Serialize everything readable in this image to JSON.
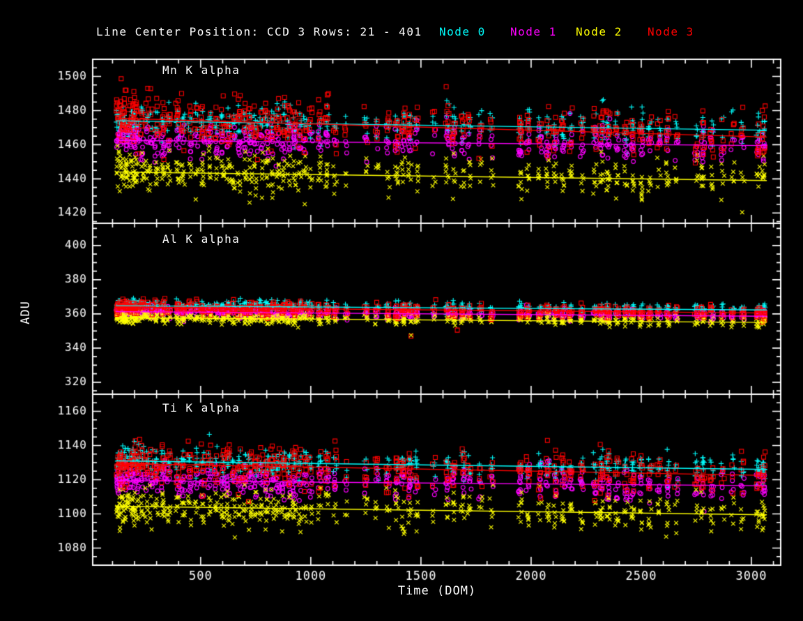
{
  "chart_data": {
    "type": "scatter",
    "title": "Line Center Position: CCD 3 Rows: 21 - 401",
    "xlabel": "Time (DOM)",
    "ylabel": "ADU",
    "xlim": [
      10,
      3133
    ],
    "xticks": [
      500,
      1000,
      1500,
      2000,
      2500,
      3000
    ],
    "x_minor_step": 100,
    "background": "#000000",
    "axis_color": "#ffffff",
    "grid": false,
    "legend_position": "top-right",
    "nodes": [
      {
        "name": "Node 0",
        "color": "#00ffff",
        "marker": "plus"
      },
      {
        "name": "Node 1",
        "color": "#ff00ff",
        "marker": "circle"
      },
      {
        "name": "Node 2",
        "color": "#ffff00",
        "marker": "cross"
      },
      {
        "name": "Node 3",
        "color": "#ff0000",
        "marker": "square"
      }
    ],
    "panels": [
      {
        "title": "Mn K alpha",
        "ylim": [
          1414,
          1510
        ],
        "yticks": [
          1420,
          1440,
          1460,
          1480,
          1500
        ],
        "y_minor_step": 5,
        "series": [
          {
            "node": 0,
            "trend": [
              1474.0,
              1468.5
            ],
            "sd": 5.0
          },
          {
            "node": 1,
            "trend": [
              1462.5,
              1459.5
            ],
            "sd": 4.5
          },
          {
            "node": 2,
            "trend": [
              1444.0,
              1439.0
            ],
            "sd": 5.5
          },
          {
            "node": 3,
            "trend": [
              1475.5,
              1464.5
            ],
            "sd": 7.0
          }
        ]
      },
      {
        "title": "Al K alpha",
        "ylim": [
          313,
          413
        ],
        "yticks": [
          320,
          340,
          360,
          380,
          400
        ],
        "y_minor_step": 5,
        "series": [
          {
            "node": 0,
            "trend": [
              364.8,
              362.3
            ],
            "sd": 1.6
          },
          {
            "node": 1,
            "trend": [
              361.3,
              358.6
            ],
            "sd": 1.5
          },
          {
            "node": 2,
            "trend": [
              357.8,
              355.0
            ],
            "sd": 1.6
          },
          {
            "node": 3,
            "trend": [
              364.0,
              360.5
            ],
            "sd": 2.0
          }
        ]
      },
      {
        "title": "Ti K alpha",
        "ylim": [
          1070,
          1170
        ],
        "yticks": [
          1080,
          1100,
          1120,
          1140,
          1160
        ],
        "y_minor_step": 5,
        "series": [
          {
            "node": 0,
            "trend": [
              1131.0,
              1126.0
            ],
            "sd": 4.0
          },
          {
            "node": 1,
            "trend": [
              1119.5,
              1116.5
            ],
            "sd": 4.0
          },
          {
            "node": 2,
            "trend": [
              1104.5,
              1099.5
            ],
            "sd": 5.0
          },
          {
            "node": 3,
            "trend": [
              1129.5,
              1122.5
            ],
            "sd": 6.0
          }
        ]
      }
    ],
    "trend_x_range": [
      115,
      3070
    ],
    "clusters": {
      "times": [
        125,
        140,
        155,
        170,
        185,
        200,
        215,
        235,
        255,
        275,
        300,
        330,
        355,
        395,
        420,
        450,
        480,
        510,
        540,
        570,
        600,
        625,
        650,
        675,
        700,
        725,
        750,
        775,
        800,
        825,
        850,
        875,
        900,
        925,
        950,
        975,
        1000,
        1040,
        1075,
        1110,
        1160,
        1250,
        1300,
        1350,
        1390,
        1420,
        1450,
        1480,
        1560,
        1620,
        1650,
        1690,
        1720,
        1770,
        1820,
        1950,
        1985,
        2040,
        2075,
        2110,
        2145,
        2180,
        2230,
        2290,
        2320,
        2350,
        2390,
        2430,
        2460,
        2500,
        2540,
        2580,
        2620,
        2660,
        2750,
        2780,
        2820,
        2870,
        2915,
        2960,
        3030,
        3055
      ],
      "weights": [
        1.4,
        1.2,
        1.3,
        1.1,
        1.0,
        1.2,
        0.9,
        0.8,
        0.7,
        0.6,
        0.9,
        1.1,
        0.8,
        1.0,
        0.9,
        0.8,
        0.7,
        1.0,
        0.9,
        0.8,
        1.0,
        0.9,
        0.8,
        0.9,
        0.9,
        1.0,
        0.8,
        0.9,
        1.0,
        0.9,
        0.9,
        1.0,
        0.9,
        1.0,
        0.8,
        0.7,
        0.6,
        0.8,
        0.9,
        0.7,
        0.4,
        0.5,
        0.5,
        0.7,
        0.9,
        1.0,
        0.9,
        0.7,
        0.4,
        0.8,
        0.9,
        0.8,
        0.6,
        0.5,
        0.6,
        1.1,
        0.9,
        0.8,
        1.0,
        0.9,
        0.9,
        0.8,
        0.7,
        0.8,
        1.0,
        1.1,
        0.8,
        0.8,
        0.9,
        0.9,
        0.7,
        0.6,
        0.8,
        0.5,
        0.8,
        0.9,
        0.7,
        0.5,
        0.5,
        0.6,
        1.0,
        1.3
      ]
    },
    "outliers": [
      {
        "panel": 1,
        "node": 3,
        "t": 1455,
        "y": 347.0
      },
      {
        "panel": 1,
        "node": 2,
        "t": 1455,
        "y": 347.5
      },
      {
        "panel": 1,
        "node": 3,
        "t": 1665,
        "y": 350.5
      },
      {
        "panel": 0,
        "node": 1,
        "t": 2780,
        "y": 1450.0
      },
      {
        "panel": 0,
        "node": 1,
        "t": 2865,
        "y": 1451.0
      },
      {
        "panel": 2,
        "node": 1,
        "t": 2450,
        "y": 1108.0
      },
      {
        "panel": 2,
        "node": 1,
        "t": 2865,
        "y": 1109.0
      }
    ],
    "points_base_per_cluster": 8,
    "seed": 42
  }
}
